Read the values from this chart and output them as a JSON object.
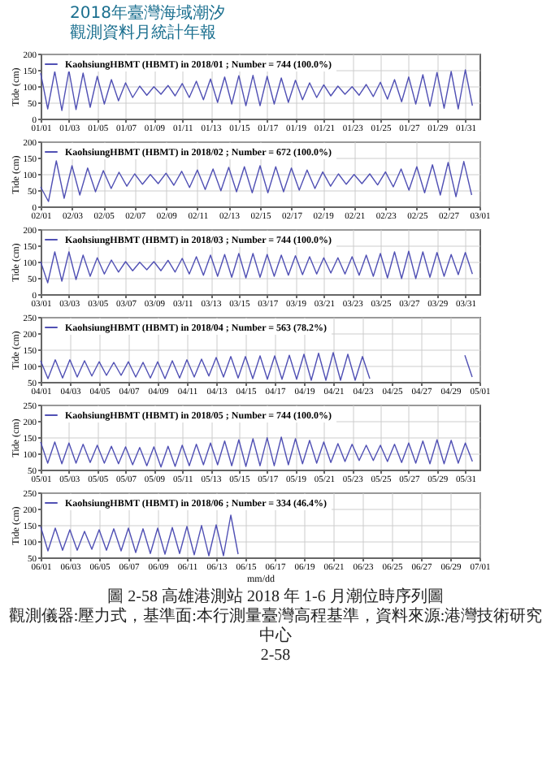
{
  "chart_data": [
    {
      "type": "line",
      "ylabel": "Tide (cm)",
      "ylim": [
        0,
        200
      ],
      "yticks": [
        0,
        50,
        100,
        150,
        200
      ],
      "xlim": [
        "2018-01-01",
        "2018-02-01"
      ],
      "grid": true,
      "legend": "top left",
      "annotations": [
        "2018年臺灣海域潮汐",
        "觀測資料月統計年報"
      ],
      "xticks": [
        {
          "value": "2018-01-01",
          "label": "01/01"
        },
        {
          "value": "2018-01-03",
          "label": "01/03"
        },
        {
          "value": "2018-01-05",
          "label": "01/05"
        },
        {
          "value": "2018-01-07",
          "label": "01/07"
        },
        {
          "value": "2018-01-09",
          "label": "01/09"
        },
        {
          "value": "2018-01-11",
          "label": "01/11"
        },
        {
          "value": "2018-01-13",
          "label": "01/13"
        },
        {
          "value": "2018-01-15",
          "label": "01/15"
        },
        {
          "value": "2018-01-17",
          "label": "01/17"
        },
        {
          "value": "2018-01-19",
          "label": "01/19"
        },
        {
          "value": "2018-01-21",
          "label": "01/21"
        },
        {
          "value": "2018-01-23",
          "label": "01/23"
        },
        {
          "value": "2018-01-25",
          "label": "01/25"
        },
        {
          "value": "2018-01-27",
          "label": "01/27"
        },
        {
          "value": "2018-01-29",
          "label": "01/29"
        },
        {
          "value": "2018-01-31",
          "label": "01/31"
        }
      ],
      "series": [
        {
          "name": "KaohsiungHBMT (HBMT) in 2018/01 ; Number = 744  (100.0%)",
          "color": "#5050b4",
          "x": [
            "2018-01-01T00:00",
            "2018-01-01T12:00",
            "2018-01-02T00:00",
            "2018-01-02T12:00",
            "2018-01-03T00:00",
            "2018-01-03T12:00",
            "2018-01-04T00:00",
            "2018-01-04T12:00",
            "2018-01-05T00:00",
            "2018-01-05T12:00",
            "2018-01-06T00:00",
            "2018-01-06T12:00",
            "2018-01-07T00:00",
            "2018-01-07T12:00",
            "2018-01-08T00:00",
            "2018-01-08T12:00",
            "2018-01-09T00:00",
            "2018-01-09T12:00",
            "2018-01-10T00:00",
            "2018-01-10T12:00",
            "2018-01-11T00:00",
            "2018-01-11T12:00",
            "2018-01-12T00:00",
            "2018-01-12T12:00",
            "2018-01-13T00:00",
            "2018-01-13T12:00",
            "2018-01-14T00:00",
            "2018-01-14T12:00",
            "2018-01-15T00:00",
            "2018-01-15T12:00",
            "2018-01-16T00:00",
            "2018-01-16T12:00",
            "2018-01-17T00:00",
            "2018-01-17T12:00",
            "2018-01-18T00:00",
            "2018-01-18T12:00",
            "2018-01-19T00:00",
            "2018-01-19T12:00",
            "2018-01-20T00:00",
            "2018-01-20T12:00",
            "2018-01-21T00:00",
            "2018-01-21T12:00",
            "2018-01-22T00:00",
            "2018-01-22T12:00",
            "2018-01-23T00:00",
            "2018-01-23T12:00",
            "2018-01-24T00:00",
            "2018-01-24T12:00",
            "2018-01-25T00:00",
            "2018-01-25T12:00",
            "2018-01-26T00:00",
            "2018-01-26T12:00",
            "2018-01-27T00:00",
            "2018-01-27T12:00",
            "2018-01-28T00:00",
            "2018-01-28T12:00",
            "2018-01-29T00:00",
            "2018-01-29T12:00",
            "2018-01-30T00:00",
            "2018-01-30T12:00",
            "2018-01-31T00:00",
            "2018-01-31T12:00"
          ],
          "values": [
            140,
            30,
            145,
            25,
            148,
            28,
            140,
            35,
            130,
            45,
            120,
            55,
            110,
            65,
            100,
            72,
            98,
            75,
            102,
            70,
            108,
            65,
            115,
            58,
            122,
            50,
            128,
            45,
            132,
            40,
            133,
            40,
            130,
            45,
            125,
            50,
            118,
            58,
            110,
            65,
            104,
            70,
            100,
            75,
            98,
            72,
            105,
            68,
            112,
            60,
            120,
            52,
            128,
            45,
            135,
            38,
            142,
            32,
            145,
            30,
            150,
            40
          ]
        }
      ]
    },
    {
      "type": "line",
      "ylabel": "Tide (cm)",
      "ylim": [
        0,
        200
      ],
      "yticks": [
        0,
        50,
        100,
        150,
        200
      ],
      "xlim": [
        "2018-02-01",
        "2018-03-01"
      ],
      "grid": true,
      "legend": "top left",
      "xticks": [
        {
          "value": "2018-02-01",
          "label": "02/01"
        },
        {
          "value": "2018-02-03",
          "label": "02/03"
        },
        {
          "value": "2018-02-05",
          "label": "02/05"
        },
        {
          "value": "2018-02-07",
          "label": "02/07"
        },
        {
          "value": "2018-02-09",
          "label": "02/09"
        },
        {
          "value": "2018-02-11",
          "label": "02/11"
        },
        {
          "value": "2018-02-13",
          "label": "02/13"
        },
        {
          "value": "2018-02-15",
          "label": "02/15"
        },
        {
          "value": "2018-02-17",
          "label": "02/17"
        },
        {
          "value": "2018-02-19",
          "label": "02/19"
        },
        {
          "value": "2018-02-21",
          "label": "02/21"
        },
        {
          "value": "2018-02-23",
          "label": "02/23"
        },
        {
          "value": "2018-02-25",
          "label": "02/25"
        },
        {
          "value": "2018-02-27",
          "label": "02/27"
        },
        {
          "value": "2018-03-01",
          "label": "03/01"
        }
      ],
      "series": [
        {
          "name": "KaohsiungHBMT (HBMT) in 2018/02 ; Number = 672  (100.0%)",
          "color": "#5050b4",
          "x": [
            "2018-02-01T00:00",
            "2018-02-01T12:00",
            "2018-02-02T00:00",
            "2018-02-02T12:00",
            "2018-02-03T00:00",
            "2018-02-03T12:00",
            "2018-02-04T00:00",
            "2018-02-04T12:00",
            "2018-02-05T00:00",
            "2018-02-05T12:00",
            "2018-02-06T00:00",
            "2018-02-06T12:00",
            "2018-02-07T00:00",
            "2018-02-07T12:00",
            "2018-02-08T00:00",
            "2018-02-08T12:00",
            "2018-02-09T00:00",
            "2018-02-09T12:00",
            "2018-02-10T00:00",
            "2018-02-10T12:00",
            "2018-02-11T00:00",
            "2018-02-11T12:00",
            "2018-02-12T00:00",
            "2018-02-12T12:00",
            "2018-02-13T00:00",
            "2018-02-13T12:00",
            "2018-02-14T00:00",
            "2018-02-14T12:00",
            "2018-02-15T00:00",
            "2018-02-15T12:00",
            "2018-02-16T00:00",
            "2018-02-16T12:00",
            "2018-02-17T00:00",
            "2018-02-17T12:00",
            "2018-02-18T00:00",
            "2018-02-18T12:00",
            "2018-02-19T00:00",
            "2018-02-19T12:00",
            "2018-02-20T00:00",
            "2018-02-20T12:00",
            "2018-02-21T00:00",
            "2018-02-21T12:00",
            "2018-02-22T00:00",
            "2018-02-22T12:00",
            "2018-02-23T00:00",
            "2018-02-23T12:00",
            "2018-02-24T00:00",
            "2018-02-24T12:00",
            "2018-02-25T00:00",
            "2018-02-25T12:00",
            "2018-02-26T00:00",
            "2018-02-26T12:00",
            "2018-02-27T00:00",
            "2018-02-27T12:00",
            "2018-02-28T00:00",
            "2018-02-28T12:00"
          ],
          "values": [
            60,
            15,
            140,
            25,
            125,
            35,
            118,
            45,
            110,
            55,
            105,
            62,
            100,
            68,
            98,
            70,
            102,
            65,
            108,
            58,
            112,
            52,
            115,
            48,
            120,
            45,
            122,
            42,
            125,
            42,
            122,
            45,
            118,
            50,
            112,
            55,
            106,
            62,
            100,
            68,
            98,
            70,
            100,
            66,
            106,
            60,
            115,
            50,
            122,
            42,
            128,
            35,
            135,
            30,
            138,
            35
          ]
        }
      ]
    },
    {
      "type": "line",
      "ylabel": "Tide (cm)",
      "ylim": [
        0,
        200
      ],
      "yticks": [
        0,
        50,
        100,
        150,
        200
      ],
      "xlim": [
        "2018-03-01",
        "2018-04-01"
      ],
      "grid": true,
      "legend": "top left",
      "xticks": [
        {
          "value": "2018-03-01",
          "label": "03/01"
        },
        {
          "value": "2018-03-03",
          "label": "03/03"
        },
        {
          "value": "2018-03-05",
          "label": "03/05"
        },
        {
          "value": "2018-03-07",
          "label": "03/07"
        },
        {
          "value": "2018-03-09",
          "label": "03/09"
        },
        {
          "value": "2018-03-11",
          "label": "03/11"
        },
        {
          "value": "2018-03-13",
          "label": "03/13"
        },
        {
          "value": "2018-03-15",
          "label": "03/15"
        },
        {
          "value": "2018-03-17",
          "label": "03/17"
        },
        {
          "value": "2018-03-19",
          "label": "03/19"
        },
        {
          "value": "2018-03-21",
          "label": "03/21"
        },
        {
          "value": "2018-03-23",
          "label": "03/23"
        },
        {
          "value": "2018-03-25",
          "label": "03/25"
        },
        {
          "value": "2018-03-27",
          "label": "03/27"
        },
        {
          "value": "2018-03-29",
          "label": "03/29"
        },
        {
          "value": "2018-03-31",
          "label": "03/31"
        }
      ],
      "series": [
        {
          "name": "KaohsiungHBMT (HBMT) in 2018/03 ; Number = 744  (100.0%)",
          "color": "#5050b4",
          "x": [
            "2018-03-01T00:00",
            "2018-03-01T12:00",
            "2018-03-02T00:00",
            "2018-03-02T12:00",
            "2018-03-03T00:00",
            "2018-03-03T12:00",
            "2018-03-04T00:00",
            "2018-03-04T12:00",
            "2018-03-05T00:00",
            "2018-03-05T12:00",
            "2018-03-06T00:00",
            "2018-03-06T12:00",
            "2018-03-07T00:00",
            "2018-03-07T12:00",
            "2018-03-08T00:00",
            "2018-03-08T12:00",
            "2018-03-09T00:00",
            "2018-03-09T12:00",
            "2018-03-10T00:00",
            "2018-03-10T12:00",
            "2018-03-11T00:00",
            "2018-03-11T12:00",
            "2018-03-12T00:00",
            "2018-03-12T12:00",
            "2018-03-13T00:00",
            "2018-03-13T12:00",
            "2018-03-14T00:00",
            "2018-03-14T12:00",
            "2018-03-15T00:00",
            "2018-03-15T12:00",
            "2018-03-16T00:00",
            "2018-03-16T12:00",
            "2018-03-17T00:00",
            "2018-03-17T12:00",
            "2018-03-18T00:00",
            "2018-03-18T12:00",
            "2018-03-19T00:00",
            "2018-03-19T12:00",
            "2018-03-20T00:00",
            "2018-03-20T12:00",
            "2018-03-21T00:00",
            "2018-03-21T12:00",
            "2018-03-22T00:00",
            "2018-03-22T12:00",
            "2018-03-23T00:00",
            "2018-03-23T12:00",
            "2018-03-24T00:00",
            "2018-03-24T12:00",
            "2018-03-25T00:00",
            "2018-03-25T12:00",
            "2018-03-26T00:00",
            "2018-03-26T12:00",
            "2018-03-27T00:00",
            "2018-03-27T12:00",
            "2018-03-28T00:00",
            "2018-03-28T12:00",
            "2018-03-29T00:00",
            "2018-03-29T12:00",
            "2018-03-30T00:00",
            "2018-03-30T12:00",
            "2018-03-31T00:00",
            "2018-03-31T12:00"
          ],
          "values": [
            100,
            35,
            130,
            40,
            130,
            45,
            120,
            55,
            112,
            62,
            105,
            68,
            100,
            72,
            98,
            75,
            100,
            72,
            104,
            68,
            110,
            62,
            115,
            58,
            120,
            55,
            122,
            52,
            125,
            50,
            125,
            52,
            122,
            55,
            120,
            58,
            118,
            60,
            115,
            62,
            112,
            65,
            112,
            62,
            115,
            58,
            120,
            55,
            125,
            50,
            130,
            48,
            132,
            48,
            130,
            52,
            128,
            55,
            122,
            60,
            128,
            62
          ]
        }
      ]
    },
    {
      "type": "line",
      "ylabel": "Tide (cm)",
      "ylim": [
        50,
        250
      ],
      "yticks": [
        50,
        100,
        150,
        200,
        250
      ],
      "xlim": [
        "2018-04-01",
        "2018-05-01"
      ],
      "grid": true,
      "legend": "top left",
      "xticks": [
        {
          "value": "2018-04-01",
          "label": "04/01"
        },
        {
          "value": "2018-04-03",
          "label": "04/03"
        },
        {
          "value": "2018-04-05",
          "label": "04/05"
        },
        {
          "value": "2018-04-07",
          "label": "04/07"
        },
        {
          "value": "2018-04-09",
          "label": "04/09"
        },
        {
          "value": "2018-04-11",
          "label": "04/11"
        },
        {
          "value": "2018-04-13",
          "label": "04/13"
        },
        {
          "value": "2018-04-15",
          "label": "04/15"
        },
        {
          "value": "2018-04-17",
          "label": "04/17"
        },
        {
          "value": "2018-04-19",
          "label": "04/19"
        },
        {
          "value": "2018-04-21",
          "label": "04/21"
        },
        {
          "value": "2018-04-23",
          "label": "04/23"
        },
        {
          "value": "2018-04-25",
          "label": "04/25"
        },
        {
          "value": "2018-04-27",
          "label": "04/27"
        },
        {
          "value": "2018-04-29",
          "label": "04/29"
        },
        {
          "value": "2018-05-01",
          "label": "05/01"
        }
      ],
      "series": [
        {
          "name": "KaohsiungHBMT (HBMT) in 2018/04 ; Number = 563  (78.2%)",
          "color": "#5050b4",
          "x": [
            "2018-04-01T00:00",
            "2018-04-01T12:00",
            "2018-04-02T00:00",
            "2018-04-02T12:00",
            "2018-04-03T00:00",
            "2018-04-03T12:00",
            "2018-04-04T00:00",
            "2018-04-04T12:00",
            "2018-04-05T00:00",
            "2018-04-05T12:00",
            "2018-04-06T00:00",
            "2018-04-06T12:00",
            "2018-04-07T00:00",
            "2018-04-07T12:00",
            "2018-04-08T00:00",
            "2018-04-08T12:00",
            "2018-04-09T00:00",
            "2018-04-09T12:00",
            "2018-04-10T00:00",
            "2018-04-10T12:00",
            "2018-04-11T00:00",
            "2018-04-11T12:00",
            "2018-04-12T00:00",
            "2018-04-12T12:00",
            "2018-04-13T00:00",
            "2018-04-13T12:00",
            "2018-04-14T00:00",
            "2018-04-14T12:00",
            "2018-04-15T00:00",
            "2018-04-15T12:00",
            "2018-04-16T00:00",
            "2018-04-16T12:00",
            "2018-04-17T00:00",
            "2018-04-17T12:00",
            "2018-04-18T00:00",
            "2018-04-18T12:00",
            "2018-04-19T00:00",
            "2018-04-19T12:00",
            "2018-04-20T00:00",
            "2018-04-20T12:00",
            "2018-04-21T00:00",
            "2018-04-21T12:00",
            "2018-04-22T00:00",
            "2018-04-22T12:00",
            "2018-04-23T00:00",
            "2018-04-23T12:00",
            "2018-04-24T00:00",
            "2018-04-24T12:00",
            "2018-04-25T00:00",
            "2018-04-25T12:00",
            "2018-04-26T00:00",
            "2018-04-26T12:00",
            "2018-04-27T00:00",
            "2018-04-27T12:00",
            "2018-04-28T00:00",
            "2018-04-28T12:00",
            "2018-04-29T00:00",
            "2018-04-29T12:00",
            "2018-04-30T00:00",
            "2018-04-30T12:00"
          ],
          "values": [
            115,
            60,
            118,
            62,
            118,
            65,
            115,
            68,
            112,
            70,
            110,
            70,
            112,
            65,
            110,
            62,
            112,
            60,
            115,
            62,
            118,
            65,
            120,
            68,
            125,
            65,
            128,
            62,
            128,
            60,
            130,
            58,
            130,
            58,
            132,
            58,
            135,
            55,
            138,
            55,
            140,
            55,
            135,
            55,
            128,
            60,
            null,
            null,
            null,
            null,
            null,
            null,
            null,
            null,
            null,
            null,
            null,
            null,
            132,
            65
          ]
        }
      ]
    },
    {
      "type": "line",
      "ylabel": "Tide (cm)",
      "ylim": [
        50,
        250
      ],
      "yticks": [
        50,
        100,
        150,
        200,
        250
      ],
      "xlim": [
        "2018-05-01",
        "2018-06-01"
      ],
      "grid": true,
      "legend": "top left",
      "xticks": [
        {
          "value": "2018-05-01",
          "label": "05/01"
        },
        {
          "value": "2018-05-03",
          "label": "05/03"
        },
        {
          "value": "2018-05-05",
          "label": "05/05"
        },
        {
          "value": "2018-05-07",
          "label": "05/07"
        },
        {
          "value": "2018-05-09",
          "label": "05/09"
        },
        {
          "value": "2018-05-11",
          "label": "05/11"
        },
        {
          "value": "2018-05-13",
          "label": "05/13"
        },
        {
          "value": "2018-05-15",
          "label": "05/15"
        },
        {
          "value": "2018-05-17",
          "label": "05/17"
        },
        {
          "value": "2018-05-19",
          "label": "05/19"
        },
        {
          "value": "2018-05-21",
          "label": "05/21"
        },
        {
          "value": "2018-05-23",
          "label": "05/23"
        },
        {
          "value": "2018-05-25",
          "label": "05/25"
        },
        {
          "value": "2018-05-27",
          "label": "05/27"
        },
        {
          "value": "2018-05-29",
          "label": "05/29"
        },
        {
          "value": "2018-05-31",
          "label": "05/31"
        }
      ],
      "series": [
        {
          "name": "KaohsiungHBMT (HBMT) in 2018/05 ; Number = 744  (100.0%)",
          "color": "#5050b4",
          "x": [
            "2018-05-01T00:00",
            "2018-05-01T12:00",
            "2018-05-02T00:00",
            "2018-05-02T12:00",
            "2018-05-03T00:00",
            "2018-05-03T12:00",
            "2018-05-04T00:00",
            "2018-05-04T12:00",
            "2018-05-05T00:00",
            "2018-05-05T12:00",
            "2018-05-06T00:00",
            "2018-05-06T12:00",
            "2018-05-07T00:00",
            "2018-05-07T12:00",
            "2018-05-08T00:00",
            "2018-05-08T12:00",
            "2018-05-09T00:00",
            "2018-05-09T12:00",
            "2018-05-10T00:00",
            "2018-05-10T12:00",
            "2018-05-11T00:00",
            "2018-05-11T12:00",
            "2018-05-12T00:00",
            "2018-05-12T12:00",
            "2018-05-13T00:00",
            "2018-05-13T12:00",
            "2018-05-14T00:00",
            "2018-05-14T12:00",
            "2018-05-15T00:00",
            "2018-05-15T12:00",
            "2018-05-16T00:00",
            "2018-05-16T12:00",
            "2018-05-17T00:00",
            "2018-05-17T12:00",
            "2018-05-18T00:00",
            "2018-05-18T12:00",
            "2018-05-19T00:00",
            "2018-05-19T12:00",
            "2018-05-20T00:00",
            "2018-05-20T12:00",
            "2018-05-21T00:00",
            "2018-05-21T12:00",
            "2018-05-22T00:00",
            "2018-05-22T12:00",
            "2018-05-23T00:00",
            "2018-05-23T12:00",
            "2018-05-24T00:00",
            "2018-05-24T12:00",
            "2018-05-25T00:00",
            "2018-05-25T12:00",
            "2018-05-26T00:00",
            "2018-05-26T12:00",
            "2018-05-27T00:00",
            "2018-05-27T12:00",
            "2018-05-28T00:00",
            "2018-05-28T12:00",
            "2018-05-29T00:00",
            "2018-05-29T12:00",
            "2018-05-30T00:00",
            "2018-05-30T12:00",
            "2018-05-31T00:00",
            "2018-05-31T12:00"
          ],
          "values": [
            135,
            70,
            135,
            68,
            132,
            70,
            128,
            72,
            125,
            70,
            122,
            68,
            120,
            65,
            118,
            62,
            120,
            58,
            122,
            60,
            125,
            62,
            128,
            65,
            132,
            65,
            138,
            62,
            142,
            60,
            145,
            62,
            148,
            62,
            150,
            65,
            145,
            68,
            140,
            70,
            135,
            72,
            130,
            75,
            128,
            78,
            125,
            78,
            125,
            75,
            128,
            72,
            132,
            70,
            138,
            68,
            142,
            68,
            140,
            70,
            132,
            75
          ]
        }
      ]
    },
    {
      "type": "line",
      "ylabel": "Tide (cm)",
      "xlabel": "mm/dd",
      "ylim": [
        50,
        250
      ],
      "yticks": [
        50,
        100,
        150,
        200,
        250
      ],
      "xlim": [
        "2018-06-01",
        "2018-07-01"
      ],
      "grid": true,
      "legend": "top left",
      "annotations": [
        "圖 2-58 高雄港測站 2018 年 1-6 月潮位時序列圖",
        "觀測儀器:壓力式，基準面:本行測量臺灣高程基準，資料來源:港灣技術研究中心",
        "2-58"
      ],
      "xticks": [
        {
          "value": "2018-06-01",
          "label": "06/01"
        },
        {
          "value": "2018-06-03",
          "label": "06/03"
        },
        {
          "value": "2018-06-05",
          "label": "06/05"
        },
        {
          "value": "2018-06-07",
          "label": "06/07"
        },
        {
          "value": "2018-06-09",
          "label": "06/09"
        },
        {
          "value": "2018-06-11",
          "label": "06/11"
        },
        {
          "value": "2018-06-13",
          "label": "06/13"
        },
        {
          "value": "2018-06-15",
          "label": "06/15"
        },
        {
          "value": "2018-06-17",
          "label": "06/17"
        },
        {
          "value": "2018-06-19",
          "label": "06/19"
        },
        {
          "value": "2018-06-21",
          "label": "06/21"
        },
        {
          "value": "2018-06-23",
          "label": "06/23"
        },
        {
          "value": "2018-06-25",
          "label": "06/25"
        },
        {
          "value": "2018-06-27",
          "label": "06/27"
        },
        {
          "value": "2018-06-29",
          "label": "06/29"
        },
        {
          "value": "2018-07-01",
          "label": "07/01"
        }
      ],
      "series": [
        {
          "name": "KaohsiungHBMT (HBMT) in 2018/06 ; Number = 334  (46.4%)",
          "color": "#5050b4",
          "x": [
            "2018-06-01T00:00",
            "2018-06-01T12:00",
            "2018-06-02T00:00",
            "2018-06-02T12:00",
            "2018-06-03T00:00",
            "2018-06-03T12:00",
            "2018-06-04T00:00",
            "2018-06-04T12:00",
            "2018-06-05T00:00",
            "2018-06-05T12:00",
            "2018-06-06T00:00",
            "2018-06-06T12:00",
            "2018-06-07T00:00",
            "2018-06-07T12:00",
            "2018-06-08T00:00",
            "2018-06-08T12:00",
            "2018-06-09T00:00",
            "2018-06-09T12:00",
            "2018-06-10T00:00",
            "2018-06-10T12:00",
            "2018-06-11T00:00",
            "2018-06-11T12:00",
            "2018-06-12T00:00",
            "2018-06-12T12:00",
            "2018-06-13T00:00",
            "2018-06-13T12:00",
            "2018-06-14T00:00",
            "2018-06-14T12:00"
          ],
          "values": [
            145,
            70,
            140,
            72,
            135,
            72,
            130,
            75,
            135,
            72,
            138,
            70,
            140,
            65,
            138,
            62,
            140,
            60,
            142,
            62,
            145,
            58,
            148,
            55,
            150,
            55,
            180,
            60
          ]
        }
      ]
    }
  ]
}
